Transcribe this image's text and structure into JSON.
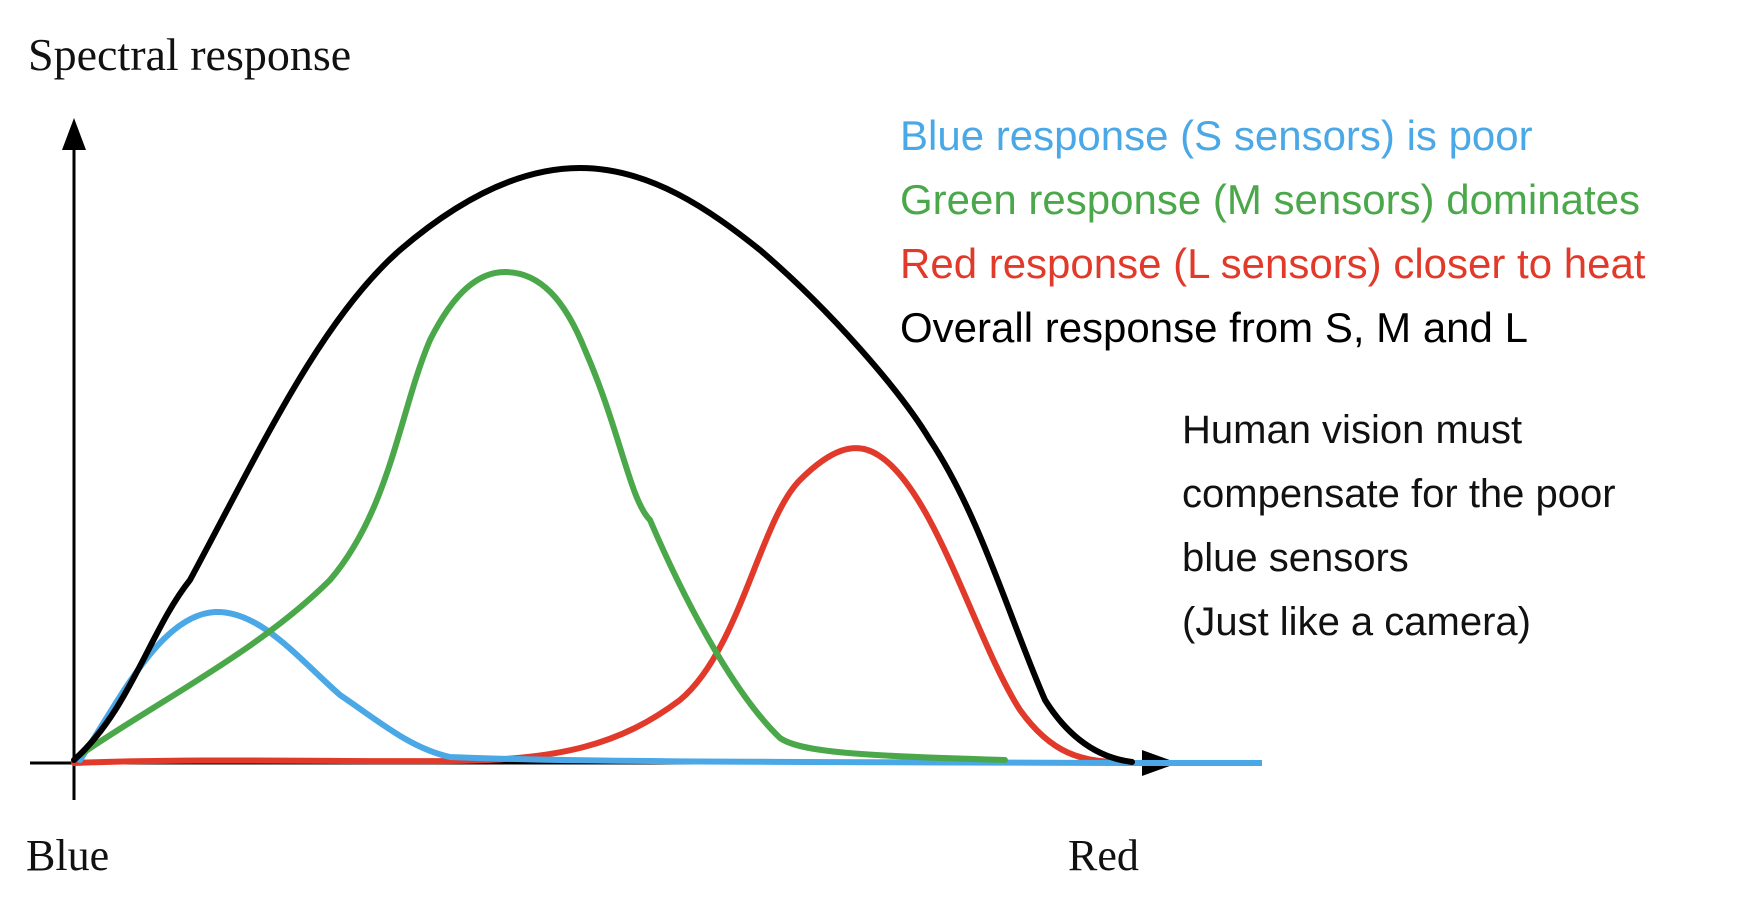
{
  "texts": {
    "y_axis_title": "Spectral response",
    "x_axis_left": "Blue",
    "x_axis_right": "Red"
  },
  "legend": [
    {
      "text": "Blue response (S sensors) is poor",
      "color": "#4aa8e6"
    },
    {
      "text": "Green response (M sensors) dominates",
      "color": "#4aa84a"
    },
    {
      "text": "Red response (L sensors) closer to heat",
      "color": "#e23a2a"
    },
    {
      "text": "Overall response from S, M and L",
      "color": "#000000"
    }
  ],
  "note": [
    "Human vision must",
    "compensate for the poor",
    "blue sensors",
    "(Just like a camera)"
  ],
  "colors": {
    "blue": "#4aa8e6",
    "green": "#4aa84a",
    "red": "#e23a2a",
    "overall": "#000000",
    "axis": "#000000"
  }
}
